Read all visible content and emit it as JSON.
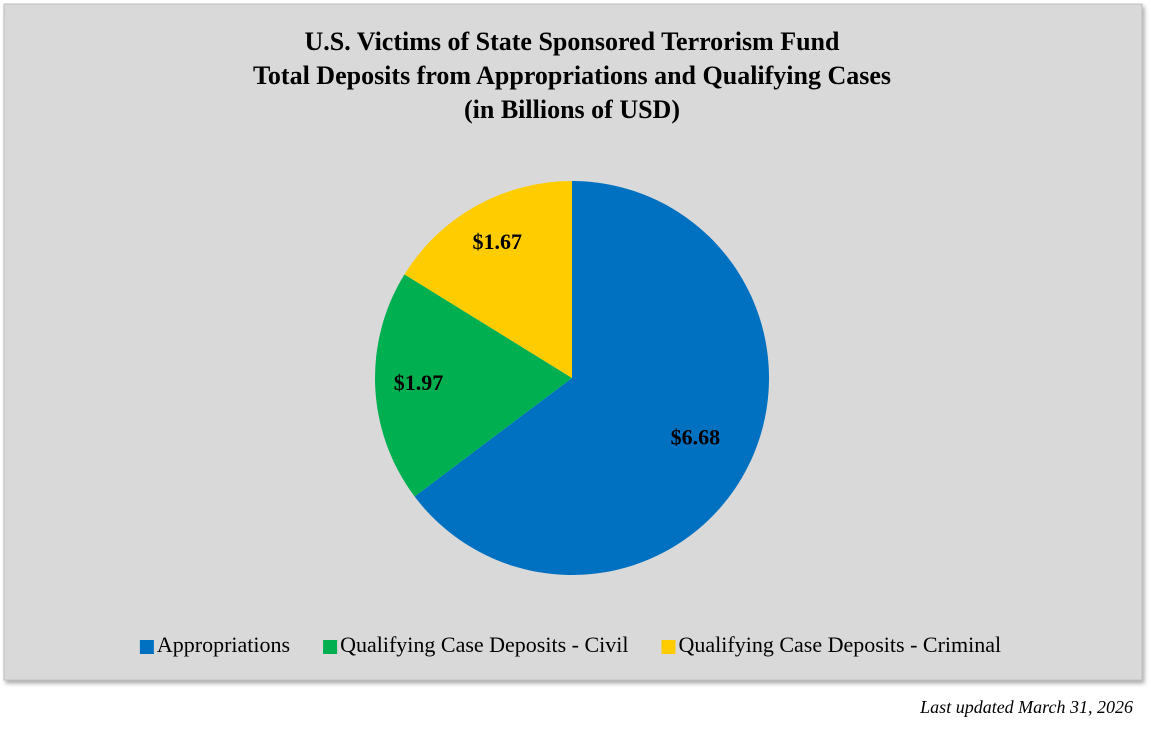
{
  "chart_data": {
    "type": "pie",
    "title": [
      "U.S. Victims of State Sponsored Terrorism Fund",
      "Total Deposits from Appropriations and Qualifying Cases",
      "(in Billions of USD)"
    ],
    "categories": [
      "Appropriations",
      "Qualifying Case Deposits - Civil",
      "Qualifying Case Deposits - Criminal"
    ],
    "values": [
      6.68,
      1.97,
      1.67
    ],
    "value_labels": [
      "$6.68",
      "$1.97",
      "$1.67"
    ],
    "colors": [
      "#0070c0",
      "#00b050",
      "#ffcc00"
    ],
    "legend": "bottom",
    "footnote": "Last updated March 31, 2026"
  }
}
